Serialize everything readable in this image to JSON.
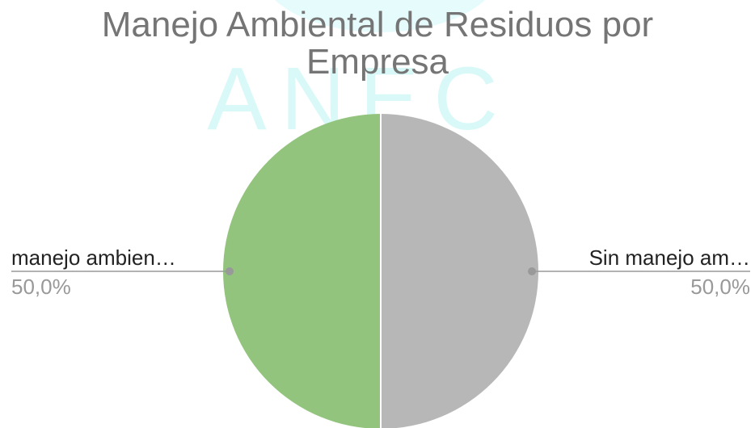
{
  "chart_data": {
    "type": "pie",
    "title": "Manejo Ambiental de Residuos por Empresa",
    "watermark": "ANEC",
    "categories": [
      "Sin manejo am…",
      "manejo ambien…"
    ],
    "values": [
      50,
      50
    ],
    "value_labels": [
      "50,0%",
      "50,0%"
    ],
    "colors": [
      "#b7b7b7",
      "#93c47d"
    ]
  }
}
